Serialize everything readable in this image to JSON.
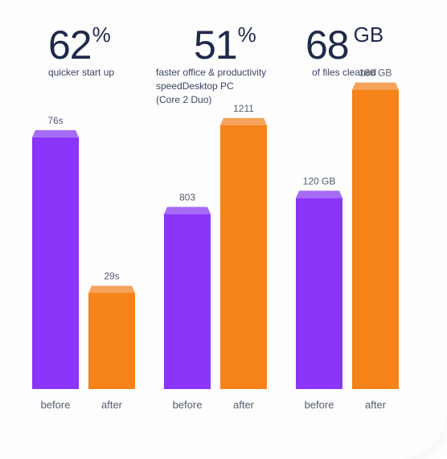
{
  "stats": [
    {
      "value": "62",
      "unit": "%",
      "caption": "quicker start up"
    },
    {
      "value": "51",
      "unit": "%",
      "caption": "faster office & productivity\nspeedDesktop PC\n(Core 2 Duo)"
    },
    {
      "value": "68",
      "unit": "GB",
      "caption": "of files cleaned"
    }
  ],
  "colors": {
    "before": "#8a35f9",
    "before_top": "#a66cf7",
    "after": "#f5831a",
    "after_top": "#f5a35a"
  },
  "chart_data": [
    {
      "type": "bar",
      "title": "62% quicker start up",
      "categories": [
        "before",
        "after"
      ],
      "values": [
        76,
        29
      ],
      "value_labels": [
        "76s",
        "29s"
      ],
      "ylim": [
        0,
        100
      ]
    },
    {
      "type": "bar",
      "title": "51% faster office & productivity speedDesktop PC (Core 2 Duo)",
      "categories": [
        "before",
        "after"
      ],
      "values": [
        803,
        1211
      ],
      "value_labels": [
        "803",
        "1211"
      ],
      "ylim": [
        0,
        1520
      ]
    },
    {
      "type": "bar",
      "title": "68 GB of files cleaned",
      "categories": [
        "before",
        "after"
      ],
      "values": [
        120,
        188
      ],
      "value_labels": [
        "120 GB",
        "188 GB"
      ],
      "ylim": [
        0,
        208
      ]
    }
  ]
}
